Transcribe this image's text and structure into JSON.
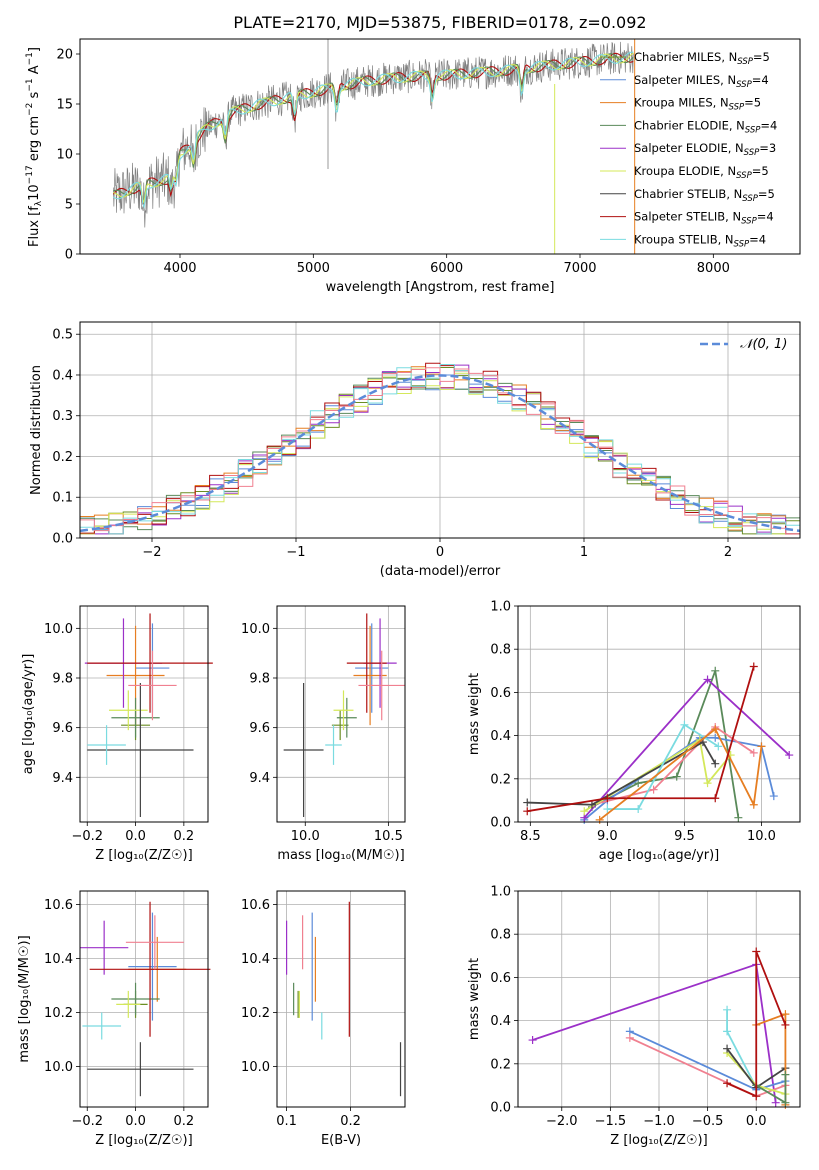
{
  "figure": {
    "title": "PLATE=2170, MJD=53875, FIBERID=0178, z=0.092"
  },
  "series": [
    {
      "name": "Chabrier MILES, N$_{SSP}$=5",
      "label_main": "Chabrier MILES, N",
      "label_sub": "SSP",
      "label_end": "=5",
      "color": "#6b8e23"
    },
    {
      "name": "Salpeter MILES, N$_{SSP}$=4",
      "label_main": "Salpeter MILES, N",
      "label_sub": "SSP",
      "label_end": "=4",
      "color": "#5b8bd9"
    },
    {
      "name": "Kroupa MILES, N$_{SSP}$=5",
      "label_main": "Kroupa MILES, N",
      "label_sub": "SSP",
      "label_end": "=5",
      "color": "#e67e22"
    },
    {
      "name": "Chabrier ELODIE, N$_{SSP}$=4",
      "label_main": "Chabrier ELODIE, N",
      "label_sub": "SSP",
      "label_end": "=4",
      "color": "#5a8a5a"
    },
    {
      "name": "Salpeter ELODIE, N$_{SSP}$=3",
      "label_main": "Salpeter ELODIE, N",
      "label_sub": "SSP",
      "label_end": "=3",
      "color": "#9b30c8"
    },
    {
      "name": "Kroupa ELODIE, N$_{SSP}$=5",
      "label_main": "Kroupa ELODIE, N",
      "label_sub": "SSP",
      "label_end": "=5",
      "color": "#d4e85a"
    },
    {
      "name": "Chabrier STELIB, N$_{SSP}$=5",
      "label_main": "Chabrier STELIB, N",
      "label_sub": "SSP",
      "label_end": "=5",
      "color": "#444444"
    },
    {
      "name": "Salpeter STELIB, N$_{SSP}$=4",
      "label_main": "Salpeter STELIB, N",
      "label_sub": "SSP",
      "label_end": "=4",
      "color": "#b01010"
    },
    {
      "name": "Kroupa STELIB, N$_{SSP}$=4",
      "label_main": "Kroupa STELIB, N",
      "label_sub": "SSP",
      "label_end": "=4",
      "color": "#7adbe0"
    }
  ],
  "extra_colors": {
    "pink": "#f08090",
    "spectrum_gray": "#808080"
  },
  "chart_data": [
    {
      "id": "spectrum",
      "type": "line",
      "xlabel": "wavelength [Angstrom, rest frame]",
      "ylabel_main": "Flux [f",
      "ylabel_sub": "λ",
      "ylabel_mid": "10",
      "ylabel_sup1": "−17",
      "ylabel_mid2": " erg cm",
      "ylabel_sup2": "−2",
      "ylabel_mid3": " s",
      "ylabel_sup3": "−1",
      "ylabel_mid4": " A",
      "ylabel_sup4": "−1",
      "ylabel_end": "]",
      "xlim": [
        3250,
        8650
      ],
      "ylim": [
        0,
        21.5
      ],
      "xticks": [
        4000,
        5000,
        6000,
        7000,
        8000
      ],
      "yticks": [
        0,
        5,
        10,
        15,
        20
      ],
      "continuum_x": [
        3500,
        3600,
        3750,
        3900,
        4000,
        4200,
        4400,
        4600,
        4800,
        5000,
        5200,
        5400,
        5600,
        5800,
        6000,
        6200,
        6400,
        6600,
        6800,
        7000,
        7200,
        7400
      ],
      "continuum_y": [
        5.8,
        6.3,
        7.0,
        7.5,
        10.0,
        12.6,
        14.2,
        15.0,
        15.6,
        16.2,
        16.8,
        17.3,
        17.6,
        17.8,
        17.9,
        18.1,
        18.3,
        18.6,
        18.9,
        19.2,
        19.5,
        19.7
      ],
      "legend_loc": "upper right"
    },
    {
      "id": "residual_hist",
      "type": "bar",
      "xlabel": "(data-model)/error",
      "ylabel": "Normed distribution",
      "xlim": [
        -2.5,
        2.5
      ],
      "ylim": [
        0,
        0.53
      ],
      "xticks": [
        -2,
        -1,
        0,
        1,
        2
      ],
      "xtick_labels": [
        "−2",
        "−1",
        "0",
        "1",
        "2"
      ],
      "yticks": [
        0.0,
        0.1,
        0.2,
        0.3,
        0.4,
        0.5
      ],
      "ytick_labels": [
        "0.0",
        "0.1",
        "0.2",
        "0.3",
        "0.4",
        "0.5"
      ],
      "grid": true,
      "reference_curve": "N(0,1)",
      "reference_label": "𝒩(0, 1)",
      "reference_color": "#5b8bd9",
      "bin_width": 0.1,
      "legend_loc": "upper right"
    },
    {
      "id": "age_vs_Z",
      "type": "scatter",
      "xlabel": "Z [log₁₀(Z/Z☉)]",
      "ylabel": "age  [log₁₀(age/yr)]",
      "xlim": [
        -0.23,
        0.3
      ],
      "ylim": [
        9.22,
        10.09
      ],
      "xticks": [
        -0.2,
        0.0,
        0.2
      ],
      "xtick_labels": [
        "−0.2",
        "0.0",
        "0.2"
      ],
      "yticks": [
        9.4,
        9.6,
        9.8,
        10.0
      ],
      "ytick_labels": [
        "9.4",
        "9.6",
        "9.8",
        "10.0"
      ],
      "grid": true,
      "points": [
        {
          "series": 0,
          "x": 0.0,
          "y": 9.61,
          "xerr": 0.06,
          "yerr": 0.06
        },
        {
          "series": 1,
          "x": 0.07,
          "y": 9.84,
          "xerr": 0.07,
          "yerr": 0.18
        },
        {
          "series": 2,
          "x": 0.0,
          "y": 9.81,
          "xerr": 0.12,
          "yerr": 0.2
        },
        {
          "series": 3,
          "x": 0.0,
          "y": 9.64,
          "xerr": 0.1,
          "yerr": 0.08
        },
        {
          "series": 4,
          "x": -0.05,
          "y": 9.86,
          "xerr": 0.16,
          "yerr": 0.18
        },
        {
          "series": 5,
          "x": -0.03,
          "y": 9.67,
          "xerr": 0.08,
          "yerr": 0.08
        },
        {
          "series": 6,
          "x": 0.02,
          "y": 9.51,
          "xerr": 0.22,
          "yerr": 0.27
        },
        {
          "series": 7,
          "x": 0.06,
          "y": 9.86,
          "xerr": 0.26,
          "yerr": 0.2
        },
        {
          "series": 8,
          "x": -0.12,
          "y": 9.53,
          "xerr": 0.08,
          "yerr": 0.08
        },
        {
          "series": 9,
          "x": 0.07,
          "y": 9.77,
          "xerr": 0.1,
          "yerr": 0.14
        }
      ]
    },
    {
      "id": "age_vs_mass",
      "type": "scatter",
      "xlabel": "mass [log₁₀(M/M☉)]",
      "xlim": [
        9.83,
        10.6
      ],
      "ylim": [
        9.22,
        10.09
      ],
      "xticks": [
        10.0,
        10.5
      ],
      "xtick_labels": [
        "10.0",
        "10.5"
      ],
      "yticks": [
        9.4,
        9.6,
        9.8,
        10.0
      ],
      "ytick_labels": [
        "9.4",
        "9.6",
        "9.8",
        "10.0"
      ],
      "grid": true,
      "points": [
        {
          "series": 0,
          "x": 10.21,
          "y": 9.61,
          "xerr": 0.05,
          "yerr": 0.06
        },
        {
          "series": 1,
          "x": 10.4,
          "y": 9.84,
          "xerr": 0.1,
          "yerr": 0.18
        },
        {
          "series": 2,
          "x": 10.39,
          "y": 9.81,
          "xerr": 0.1,
          "yerr": 0.2
        },
        {
          "series": 3,
          "x": 10.25,
          "y": 9.64,
          "xerr": 0.06,
          "yerr": 0.08
        },
        {
          "series": 4,
          "x": 10.45,
          "y": 9.86,
          "xerr": 0.1,
          "yerr": 0.18
        },
        {
          "series": 5,
          "x": 10.23,
          "y": 9.67,
          "xerr": 0.06,
          "yerr": 0.08
        },
        {
          "series": 6,
          "x": 9.99,
          "y": 9.51,
          "xerr": 0.12,
          "yerr": 0.27
        },
        {
          "series": 7,
          "x": 10.37,
          "y": 9.86,
          "xerr": 0.12,
          "yerr": 0.2
        },
        {
          "series": 8,
          "x": 10.17,
          "y": 9.53,
          "xerr": 0.05,
          "yerr": 0.08
        },
        {
          "series": 9,
          "x": 10.46,
          "y": 9.77,
          "xerr": 0.14,
          "yerr": 0.14
        }
      ]
    },
    {
      "id": "massweight_vs_age",
      "type": "line",
      "xlabel": "age  [log₁₀(age/yr)]",
      "ylabel": "mass weight",
      "xlim": [
        8.42,
        10.25
      ],
      "ylim": [
        0,
        1
      ],
      "xticks": [
        8.5,
        9.0,
        9.5,
        10.0
      ],
      "xtick_labels": [
        "8.5",
        "9.0",
        "9.5",
        "10.0"
      ],
      "yticks": [
        0.0,
        0.2,
        0.4,
        0.6,
        0.8,
        1.0
      ],
      "ytick_labels": [
        "0.0",
        "0.2",
        "0.4",
        "0.6",
        "0.8",
        "1.0"
      ],
      "grid": true,
      "lines": [
        {
          "series": 3,
          "x": [
            8.9,
            9.2,
            9.45,
            9.7,
            9.85
          ],
          "y": [
            0.07,
            0.18,
            0.21,
            0.7,
            0.02
          ]
        },
        {
          "series": 1,
          "x": [
            8.85,
            9.0,
            9.6,
            9.7,
            10.0,
            10.08
          ],
          "y": [
            0.01,
            0.1,
            0.39,
            0.39,
            0.35,
            0.12
          ]
        },
        {
          "series": 4,
          "x": [
            8.85,
            9.65,
            10.18
          ],
          "y": [
            0.02,
            0.66,
            0.31
          ]
        },
        {
          "series": 9,
          "x": [
            8.9,
            9.3,
            9.7,
            9.95
          ],
          "y": [
            0.08,
            0.15,
            0.44,
            0.32
          ]
        },
        {
          "series": 5,
          "x": [
            8.85,
            9.6,
            9.65,
            9.8
          ],
          "y": [
            0.05,
            0.38,
            0.18,
            0.31
          ]
        },
        {
          "series": 6,
          "x": [
            8.48,
            8.9,
            9.62,
            9.7
          ],
          "y": [
            0.09,
            0.08,
            0.37,
            0.27
          ]
        },
        {
          "series": 8,
          "x": [
            9.0,
            9.2,
            9.5,
            9.72
          ],
          "y": [
            0.06,
            0.06,
            0.45,
            0.35
          ]
        },
        {
          "series": 2,
          "x": [
            8.95,
            9.7,
            9.95,
            10.0
          ],
          "y": [
            0.01,
            0.43,
            0.08,
            0.35
          ]
        },
        {
          "series": 7,
          "x": [
            8.48,
            9.0,
            9.7,
            9.95
          ],
          "y": [
            0.05,
            0.11,
            0.11,
            0.72
          ]
        }
      ]
    },
    {
      "id": "mass_vs_Z",
      "type": "scatter",
      "xlabel": "Z [log₁₀(Z/Z☉)]",
      "ylabel": "mass [log₁₀(M/M☉)]",
      "xlim": [
        -0.23,
        0.3
      ],
      "ylim": [
        9.85,
        10.65
      ],
      "xticks": [
        -0.2,
        0.0,
        0.2
      ],
      "xtick_labels": [
        "−0.2",
        "0.0",
        "0.2"
      ],
      "yticks": [
        10.0,
        10.2,
        10.4,
        10.6
      ],
      "ytick_labels": [
        "10.0",
        "10.2",
        "10.4",
        "10.6"
      ],
      "grid": true,
      "points": [
        {
          "series": 0,
          "x": 0.0,
          "y": 10.23,
          "xerr": 0.05,
          "yerr": 0.05
        },
        {
          "series": 1,
          "x": 0.07,
          "y": 10.37,
          "xerr": 0.1,
          "yerr": 0.2
        },
        {
          "series": 2,
          "x": 0.09,
          "y": 10.36,
          "xerr": 0.12,
          "yerr": 0.12
        },
        {
          "series": 3,
          "x": 0.0,
          "y": 10.25,
          "xerr": 0.1,
          "yerr": 0.06
        },
        {
          "series": 4,
          "x": -0.13,
          "y": 10.44,
          "xerr": 0.1,
          "yerr": 0.1
        },
        {
          "series": 5,
          "x": -0.03,
          "y": 10.23,
          "xerr": 0.05,
          "yerr": 0.05
        },
        {
          "series": 6,
          "x": 0.02,
          "y": 9.99,
          "xerr": 0.22,
          "yerr": 0.1
        },
        {
          "series": 7,
          "x": 0.06,
          "y": 10.36,
          "xerr": 0.25,
          "yerr": 0.25
        },
        {
          "series": 8,
          "x": -0.14,
          "y": 10.15,
          "xerr": 0.08,
          "yerr": 0.05
        },
        {
          "series": 9,
          "x": 0.08,
          "y": 10.46,
          "xerr": 0.12,
          "yerr": 0.1
        }
      ]
    },
    {
      "id": "mass_vs_EBV",
      "type": "scatter",
      "xlabel": "E(B-V)",
      "xlim": [
        0.085,
        0.285
      ],
      "ylim": [
        9.85,
        10.65
      ],
      "xticks": [
        0.1,
        0.2
      ],
      "xtick_labels": [
        "0.1",
        "0.2"
      ],
      "yticks": [
        10.0,
        10.2,
        10.4,
        10.6
      ],
      "ytick_labels": [
        "10.0",
        "10.2",
        "10.4",
        "10.6"
      ],
      "grid": true,
      "points": [
        {
          "series": 0,
          "x": 0.118,
          "y": 10.23,
          "yerr": 0.05
        },
        {
          "series": 1,
          "x": 0.14,
          "y": 10.37,
          "yerr": 0.2
        },
        {
          "series": 2,
          "x": 0.145,
          "y": 10.36,
          "yerr": 0.12
        },
        {
          "series": 3,
          "x": 0.111,
          "y": 10.25,
          "yerr": 0.06
        },
        {
          "series": 4,
          "x": 0.1,
          "y": 10.44,
          "yerr": 0.1
        },
        {
          "series": 5,
          "x": 0.12,
          "y": 10.23,
          "yerr": 0.05
        },
        {
          "series": 6,
          "x": 0.278,
          "y": 9.99,
          "yerr": 0.1
        },
        {
          "series": 7,
          "x": 0.198,
          "y": 10.36,
          "yerr": 0.25
        },
        {
          "series": 8,
          "x": 0.155,
          "y": 10.15,
          "yerr": 0.05
        },
        {
          "series": 9,
          "x": 0.125,
          "y": 10.46,
          "yerr": 0.1
        }
      ]
    },
    {
      "id": "massweight_vs_Z",
      "type": "line",
      "xlabel": "Z [log₁₀(Z/Z☉)]",
      "ylabel": "mass weight",
      "xlim": [
        -2.45,
        0.45
      ],
      "ylim": [
        0,
        1
      ],
      "xticks": [
        -2.0,
        -1.5,
        -1.0,
        -0.5,
        0.0
      ],
      "xtick_labels": [
        "−2.0",
        "−1.5",
        "−1.0",
        "−0.5",
        "0.0"
      ],
      "yticks": [
        0.0,
        0.2,
        0.4,
        0.6,
        0.8,
        1.0
      ],
      "ytick_labels": [
        "0.0",
        "0.2",
        "0.4",
        "0.6",
        "0.8",
        "1.0"
      ],
      "grid": true,
      "lines": [
        {
          "series": 4,
          "x": [
            -2.3,
            0.0,
            0.2
          ],
          "y": [
            0.31,
            0.66,
            0.02
          ]
        },
        {
          "series": 1,
          "x": [
            -1.3,
            0.0,
            0.3
          ],
          "y": [
            0.35,
            0.08,
            0.12
          ]
        },
        {
          "series": 9,
          "x": [
            -1.3,
            0.0,
            0.3
          ],
          "y": [
            0.32,
            0.05,
            0.1
          ]
        },
        {
          "series": 8,
          "x": [
            -0.3,
            -0.3,
            0.0
          ],
          "y": [
            0.45,
            0.35,
            0.09
          ]
        },
        {
          "series": 5,
          "x": [
            -0.3,
            0.0,
            0.3
          ],
          "y": [
            0.25,
            0.1,
            0.06
          ]
        },
        {
          "series": 6,
          "x": [
            -0.3,
            0.0,
            0.3
          ],
          "y": [
            0.27,
            0.09,
            0.18
          ]
        },
        {
          "series": 2,
          "x": [
            0.0,
            0.3,
            0.3
          ],
          "y": [
            0.38,
            0.43,
            0.01
          ]
        },
        {
          "series": 3,
          "x": [
            0.0,
            0.3,
            0.3
          ],
          "y": [
            0.1,
            0.02,
            0.15
          ]
        },
        {
          "series": 7,
          "x": [
            -0.3,
            0.0,
            0.0,
            0.3
          ],
          "y": [
            0.11,
            0.05,
            0.72,
            0.38
          ]
        }
      ]
    }
  ]
}
